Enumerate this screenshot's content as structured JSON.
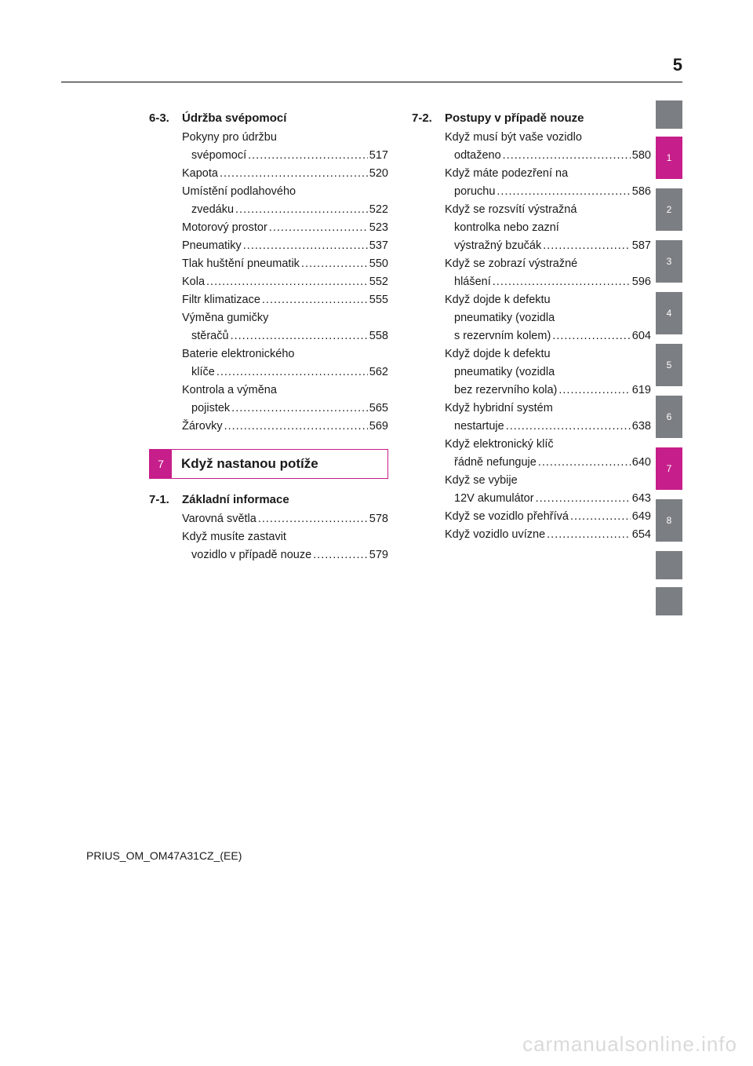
{
  "page_number": "5",
  "footer": "PRIUS_OM_OM47A31CZ_(EE)",
  "watermark": "carmanualsonline.info",
  "chapter_bar": {
    "num": "7",
    "title": "Když nastanou potíže"
  },
  "sections": {
    "s63": {
      "num": "6-3.",
      "title": "Údržba svépomocí",
      "items": [
        {
          "l1": "Pokyny pro údržbu",
          "l2": "svépomocí",
          "page": "517"
        },
        {
          "l1": "Kapota",
          "page": "520"
        },
        {
          "l1": "Umístění podlahového",
          "l2": "zvedáku",
          "page": "522"
        },
        {
          "l1": "Motorový prostor",
          "page": "523"
        },
        {
          "l1": "Pneumatiky",
          "page": "537"
        },
        {
          "l1": "Tlak huštění pneumatik",
          "page": "550"
        },
        {
          "l1": "Kola",
          "page": "552"
        },
        {
          "l1": "Filtr klimatizace",
          "page": "555"
        },
        {
          "l1": "Výměna gumičky",
          "l2": "stěračů",
          "page": "558"
        },
        {
          "l1": "Baterie elektronického",
          "l2": "klíče",
          "page": "562"
        },
        {
          "l1": "Kontrola a výměna",
          "l2": "pojistek",
          "page": "565"
        },
        {
          "l1": "Žárovky",
          "page": "569"
        }
      ]
    },
    "s71": {
      "num": "7-1.",
      "title": "Základní informace",
      "items": [
        {
          "l1": "Varovná světla",
          "page": "578"
        },
        {
          "l1": "Když musíte zastavit",
          "l2": "vozidlo v případě nouze",
          "page": "579"
        }
      ]
    },
    "s72": {
      "num": "7-2.",
      "title": "Postupy v případě nouze",
      "items": [
        {
          "l1": "Když musí být vaše vozidlo",
          "l2": "odtaženo",
          "page": "580"
        },
        {
          "l1": "Když máte podezření na",
          "l2": "poruchu",
          "page": "586"
        },
        {
          "l1": "Když se rozsvítí výstražná",
          "l2": "kontrolka nebo zazní",
          "l3": "výstražný bzučák",
          "page": "587"
        },
        {
          "l1": "Když se zobrazí výstražné",
          "l2": "hlášení",
          "page": "596"
        },
        {
          "l1": "Když dojde k defektu",
          "l2": "pneumatiky (vozidla",
          "l3": "s rezervním kolem)",
          "page": "604"
        },
        {
          "l1": "Když dojde k defektu",
          "l2": "pneumatiky (vozidla",
          "l3": "bez rezervního kola)",
          "page": "619"
        },
        {
          "l1": "Když hybridní systém",
          "l2": "nestartuje",
          "page": "638"
        },
        {
          "l1": "Když elektronický klíč",
          "l2": "řádně nefunguje",
          "page": "640"
        },
        {
          "l1": "Když se vybije",
          "l2": "12V akumulátor",
          "page": "643"
        },
        {
          "l1": "Když se vozidlo přehřívá",
          "page": "649"
        },
        {
          "l1": "Když vozidlo uvízne",
          "page": "654"
        }
      ]
    }
  },
  "tabs": [
    {
      "label": "",
      "color": "#7b7e82",
      "blank": true
    },
    {
      "label": "1",
      "color": "#c61e8a"
    },
    {
      "label": "2",
      "color": "#7b7e82"
    },
    {
      "label": "3",
      "color": "#7b7e82"
    },
    {
      "label": "4",
      "color": "#7b7e82"
    },
    {
      "label": "5",
      "color": "#7b7e82"
    },
    {
      "label": "6",
      "color": "#7b7e82"
    },
    {
      "label": "7",
      "color": "#c61e8a"
    },
    {
      "label": "8",
      "color": "#7b7e82"
    },
    {
      "label": "",
      "color": "#7b7e82",
      "blank": true
    },
    {
      "label": "",
      "color": "#7b7e82",
      "blank": true
    }
  ]
}
